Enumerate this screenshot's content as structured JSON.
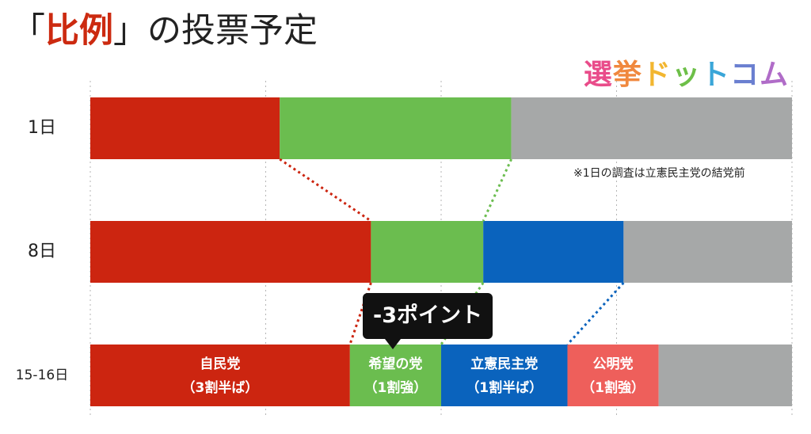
{
  "title": {
    "open_bracket": "「",
    "highlight": "比例",
    "close_bracket": "」",
    "rest": "の投票予定"
  },
  "brand": {
    "chars": [
      "選",
      "挙",
      "ド",
      "ッ",
      "ト",
      "コ",
      "ム"
    ],
    "colors": [
      "#e94c8a",
      "#f0883e",
      "#f2b630",
      "#6dbf48",
      "#3aa6d8",
      "#6a7fd0",
      "#b06cc8"
    ]
  },
  "note": "※1日の調査は立憲民主党の結党前",
  "callout": "-3ポイント",
  "colors": {
    "ldp": "#cc2510",
    "kibo": "#6bbd4f",
    "cdp": "#0a63bd",
    "komei": "#ee5f5b",
    "other": "#a6a8a8"
  },
  "chart_data": {
    "type": "bar",
    "stacked": true,
    "orientation": "horizontal",
    "xlim": [
      0,
      100
    ],
    "grid": true,
    "rows": [
      {
        "label": "1日",
        "segments": [
          {
            "key": "ldp",
            "value": 27
          },
          {
            "key": "kibo",
            "value": 33
          },
          {
            "key": "other",
            "value": 40
          }
        ]
      },
      {
        "label": "8日",
        "segments": [
          {
            "key": "ldp",
            "value": 40
          },
          {
            "key": "kibo",
            "value": 16
          },
          {
            "key": "cdp",
            "value": 20
          },
          {
            "key": "other",
            "value": 24
          }
        ]
      },
      {
        "label": "15-16日",
        "segments": [
          {
            "key": "ldp",
            "value": 37,
            "name": "自民党",
            "sub": "（3割半ば）"
          },
          {
            "key": "kibo",
            "value": 13,
            "name": "希望の党",
            "sub": "（1割強）"
          },
          {
            "key": "cdp",
            "value": 18,
            "name": "立憲民主党",
            "sub": "（1割半ば）"
          },
          {
            "key": "komei",
            "value": 13,
            "name": "公明党",
            "sub": "（1割強）"
          },
          {
            "key": "other",
            "value": 19
          }
        ]
      }
    ]
  }
}
